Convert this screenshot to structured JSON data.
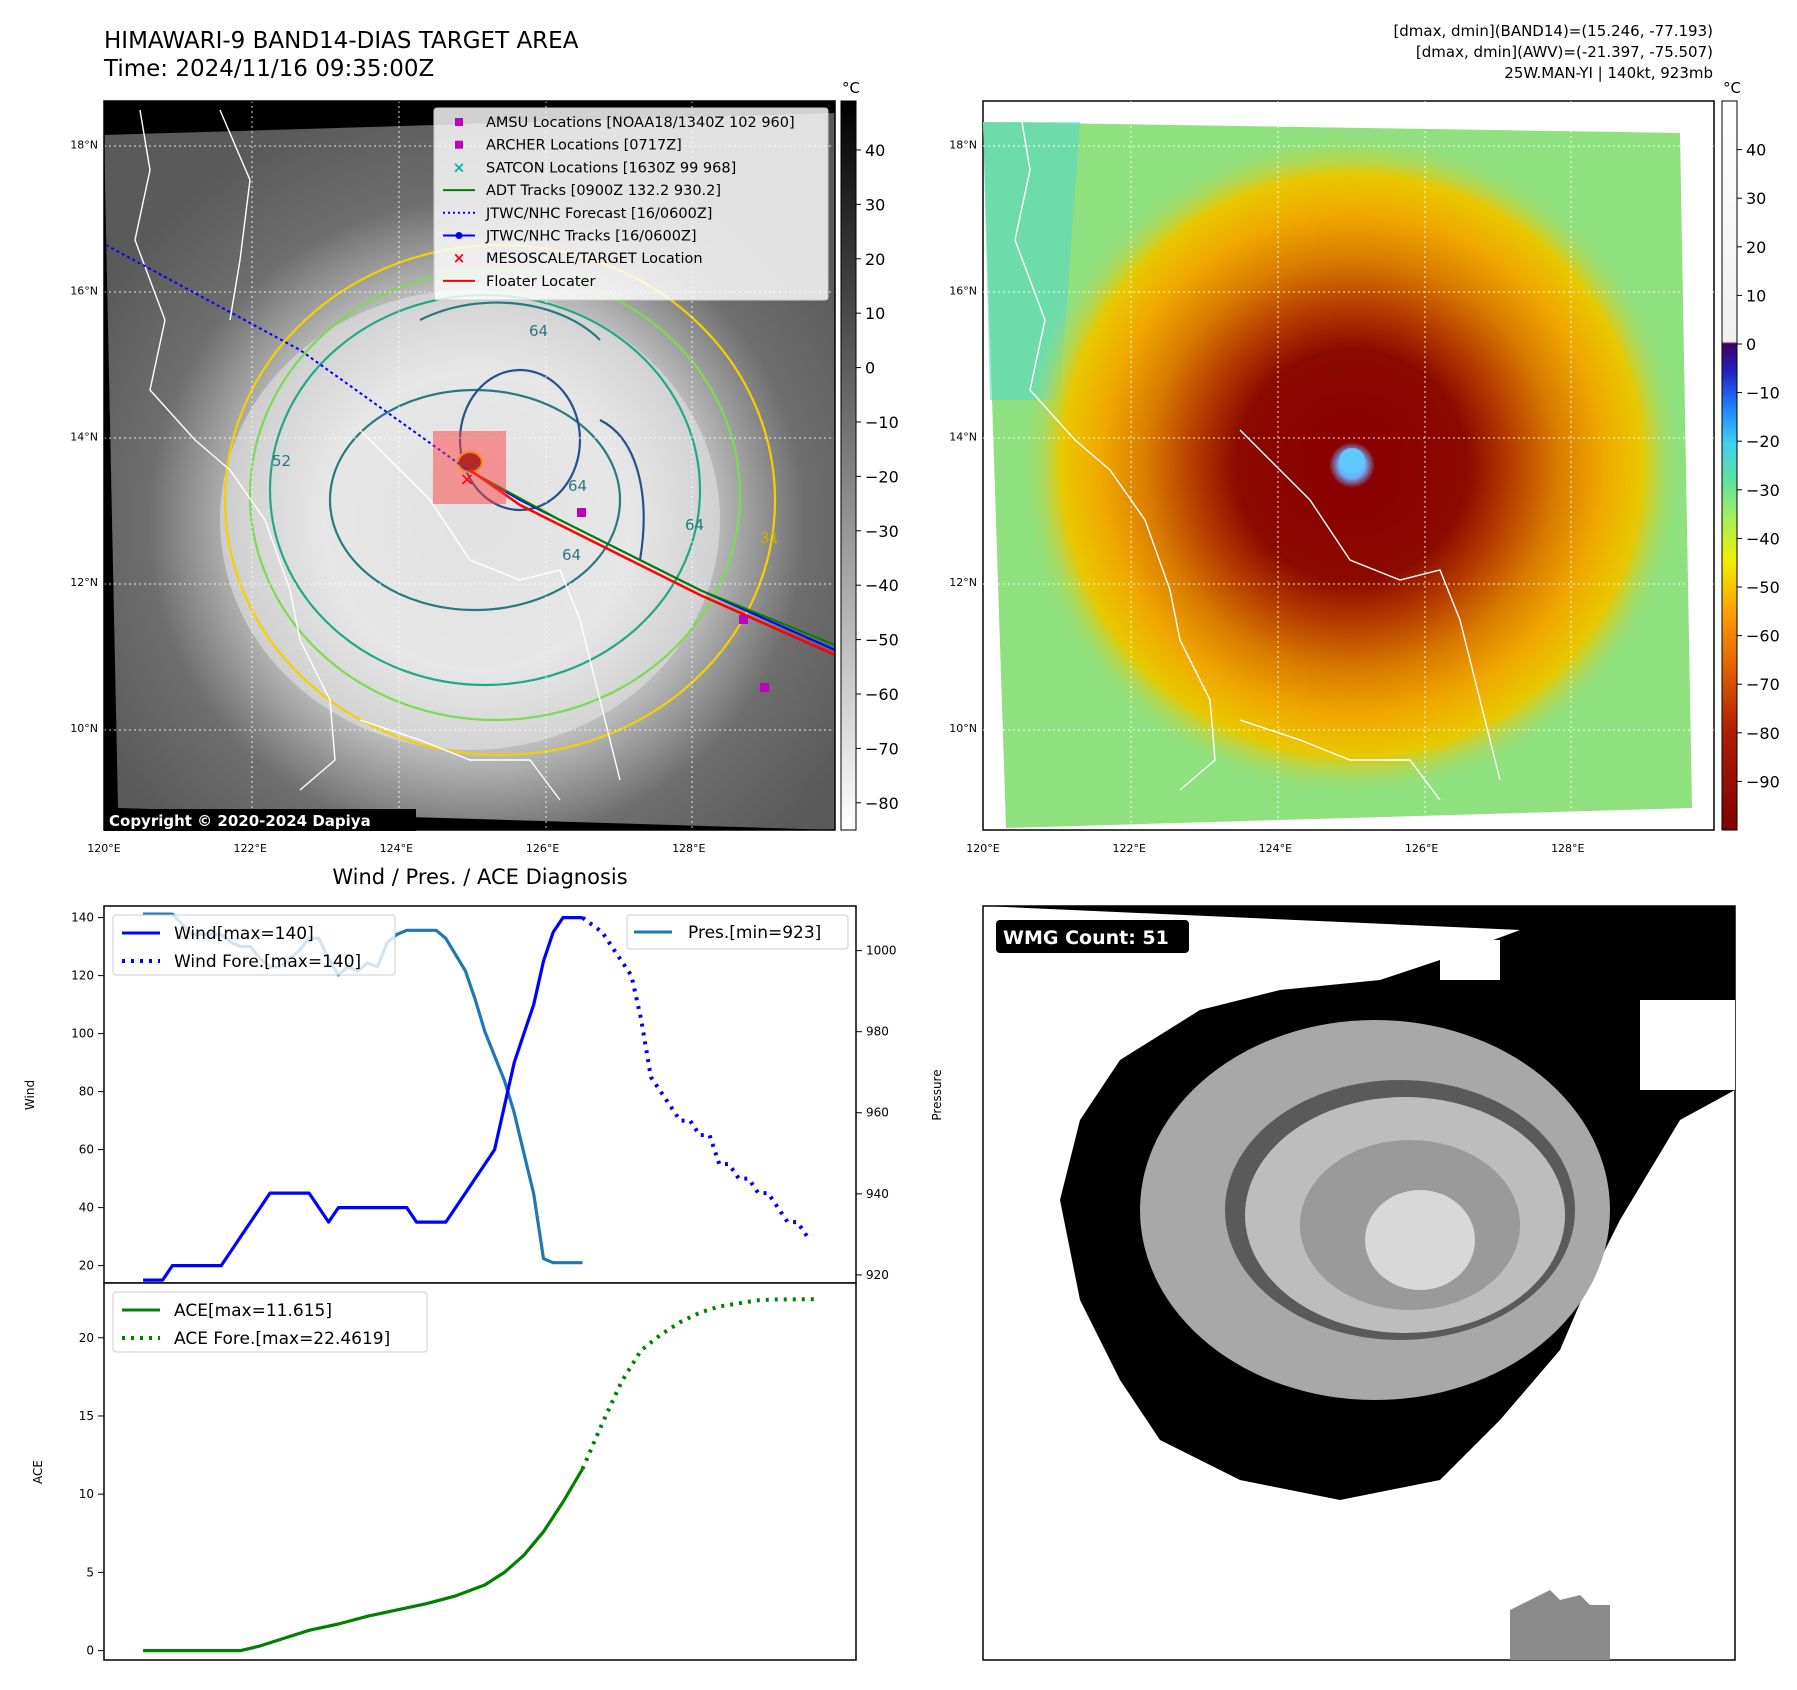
{
  "header": {
    "title": "HIMAWARI-9 BAND14-DIAS TARGET AREA",
    "time": "Time: 2024/11/16 09:35:00Z",
    "dmax_band14": "[dmax, dmin](BAND14)=(15.246, -77.193)",
    "dmax_awv": "[dmax, dmin](AWV)=(-21.397, -75.507)",
    "storm": "25W.MAN-YI | 140kt, 923mb"
  },
  "map": {
    "lat_labels": [
      "18°N",
      "16°N",
      "14°N",
      "12°N",
      "10°N"
    ],
    "lat_values": [
      18,
      16,
      14,
      12,
      10
    ],
    "lon_labels": [
      "120°E",
      "122°E",
      "124°E",
      "126°E",
      "128°E"
    ],
    "lon_values": [
      120,
      122,
      124,
      126,
      128
    ],
    "lat_range": [
      8.6,
      18.6
    ],
    "lon_range": [
      120,
      130
    ],
    "copyright": "Copyright © 2020-2024 Dapiya",
    "contour_labels": [
      "64",
      "52",
      "64",
      "64",
      "64",
      "31"
    ],
    "legend": [
      {
        "label": "AMSU Locations [NOAA18/1340Z 102 960]",
        "marker": "square",
        "color": "#c000c0"
      },
      {
        "label": "ARCHER Locations [0717Z]",
        "marker": "square",
        "color": "#c000c0"
      },
      {
        "label": "SATCON Locations [1630Z 99 968]",
        "marker": "x",
        "color": "#00b0b0"
      },
      {
        "label": "ADT Tracks [0900Z 132.2 930.2]",
        "marker": "line",
        "color": "#008000"
      },
      {
        "label": "JTWC/NHC Forecast [16/0600Z]",
        "marker": "dotted",
        "color": "#0000ff"
      },
      {
        "label": "JTWC/NHC Tracks [16/0600Z]",
        "marker": "line-dot",
        "color": "#0000ff"
      },
      {
        "label": "MESOSCALE/TARGET Location",
        "marker": "x",
        "color": "#ff0000"
      },
      {
        "label": "Floater Locater",
        "marker": "line",
        "color": "#ff0000"
      }
    ]
  },
  "colorbar_gray": {
    "unit": "°C",
    "ticks": [
      "40",
      "30",
      "20",
      "10",
      "0",
      "−10",
      "−20",
      "−30",
      "−40",
      "−50",
      "−60",
      "−70",
      "−80"
    ],
    "tick_values": [
      40,
      30,
      20,
      10,
      0,
      -10,
      -20,
      -30,
      -40,
      -50,
      -60,
      -70,
      -80
    ],
    "range": [
      49,
      -85
    ]
  },
  "colorbar_color": {
    "unit": "°C",
    "ticks": [
      "40",
      "30",
      "20",
      "10",
      "0",
      "−10",
      "−20",
      "−30",
      "−40",
      "−50",
      "−60",
      "−70",
      "−80",
      "−90"
    ],
    "tick_values": [
      40,
      30,
      20,
      10,
      0,
      -10,
      -20,
      -30,
      -40,
      -50,
      -60,
      -70,
      -80,
      -90
    ],
    "range": [
      50,
      -100
    ]
  },
  "diag": {
    "title": "Wind / Pres. / ACE Diagnosis",
    "wind_ylabel": "Wind",
    "pres_ylabel": "Pressure",
    "ace_ylabel": "ACE",
    "wind_yticks": [
      20,
      40,
      60,
      80,
      100,
      120,
      140
    ],
    "pres_yticks": [
      920,
      940,
      960,
      980,
      1000
    ],
    "ace_yticks": [
      0,
      5,
      10,
      15,
      20
    ],
    "wmg_label": "WMG Count: 51"
  },
  "chart_data": [
    {
      "type": "line",
      "title": "Wind / Pres. / ACE Diagnosis",
      "x": [
        0,
        1,
        2,
        3,
        4,
        5,
        6,
        7,
        8,
        9,
        10,
        11,
        12,
        13,
        14,
        15,
        16,
        17,
        18,
        19,
        20,
        21,
        22,
        23,
        24,
        25,
        26,
        27,
        28,
        29,
        30,
        31,
        32,
        33,
        34,
        35,
        36,
        37,
        38,
        39,
        40,
        41,
        42,
        43,
        44,
        45,
        46,
        47,
        48,
        49,
        50,
        51,
        52,
        53,
        54,
        55,
        56,
        57,
        58,
        59,
        60,
        61,
        62,
        63,
        64,
        65,
        66,
        67,
        68,
        69,
        70,
        71,
        72
      ],
      "ylabel": "Wind",
      "ylim": [
        14,
        144
      ],
      "series": [
        {
          "name": "Wind[max=140]",
          "style": "solid",
          "color": "#0000ff",
          "x": [
            0,
            2,
            3,
            4,
            5,
            6,
            7,
            8,
            9,
            10,
            11,
            12,
            13,
            14,
            15,
            16,
            17,
            18,
            19,
            20,
            21,
            22,
            23,
            24,
            25,
            26,
            27,
            28,
            29,
            30,
            31,
            32,
            33,
            34,
            35,
            36,
            37,
            38,
            39,
            40,
            41,
            42,
            43,
            44,
            45
          ],
          "values": [
            15,
            15,
            20,
            20,
            20,
            20,
            20,
            20,
            25,
            30,
            35,
            40,
            45,
            45,
            45,
            45,
            45,
            40,
            35,
            40,
            40,
            40,
            40,
            40,
            40,
            40,
            40,
            35,
            35,
            35,
            35,
            40,
            45,
            50,
            55,
            60,
            75,
            90,
            100,
            110,
            125,
            135,
            140,
            140,
            140
          ]
        },
        {
          "name": "Wind Fore.[max=140]",
          "style": "dotted",
          "color": "#0000ff",
          "x": [
            45,
            47,
            49,
            50,
            51,
            52,
            53,
            54,
            55,
            56,
            57,
            58,
            59,
            60,
            61,
            62,
            63,
            64,
            65,
            66,
            67,
            68
          ],
          "values": [
            140,
            135,
            125,
            120,
            105,
            85,
            80,
            75,
            70,
            70,
            65,
            65,
            55,
            55,
            50,
            50,
            45,
            45,
            40,
            35,
            35,
            30
          ]
        },
        {
          "name": "Pres.[min=923]",
          "axis": "right",
          "color": "#1f77b4",
          "ylim": [
            918,
            1011
          ],
          "x": [
            0,
            3,
            5,
            6,
            7,
            8,
            9,
            10,
            11,
            12,
            13,
            14,
            15,
            16,
            17,
            18,
            19,
            20,
            21,
            22,
            23,
            24,
            25,
            26,
            27,
            28,
            29,
            30,
            31,
            32,
            33,
            34,
            35,
            36,
            37,
            38,
            39,
            40,
            41,
            42,
            43,
            44,
            45
          ],
          "values": [
            1009,
            1009,
            1004,
            1004,
            1004,
            1004,
            1002,
            1001,
            1001,
            998,
            996,
            996,
            998,
            1000,
            1003,
            1003,
            998,
            994,
            996,
            995,
            997,
            996,
            1002,
            1004,
            1005,
            1005,
            1005,
            1005,
            1003,
            999,
            995,
            988,
            980,
            974,
            968,
            960,
            950,
            940,
            924,
            923,
            923,
            923,
            923
          ]
        }
      ]
    },
    {
      "type": "line",
      "ylabel": "ACE",
      "ylim": [
        -0.6,
        23.5
      ],
      "series": [
        {
          "name": "ACE[max=11.615]",
          "style": "solid",
          "color": "#008000",
          "x": [
            0,
            5,
            10,
            12,
            15,
            17,
            20,
            23,
            26,
            29,
            32,
            35,
            37,
            39,
            41,
            43,
            45
          ],
          "values": [
            0,
            0,
            0,
            0.3,
            0.9,
            1.3,
            1.7,
            2.2,
            2.6,
            3.0,
            3.5,
            4.2,
            5.0,
            6.1,
            7.6,
            9.5,
            11.615
          ]
        },
        {
          "name": "ACE Fore.[max=22.4619]",
          "style": "dotted",
          "color": "#008000",
          "x": [
            45,
            47,
            49,
            51,
            53,
            55,
            57,
            59,
            61,
            63,
            65,
            67,
            69
          ],
          "values": [
            11.615,
            14.5,
            17.2,
            19.2,
            20.2,
            21.0,
            21.6,
            22.0,
            22.2,
            22.4,
            22.45,
            22.46,
            22.4619
          ]
        }
      ]
    }
  ]
}
